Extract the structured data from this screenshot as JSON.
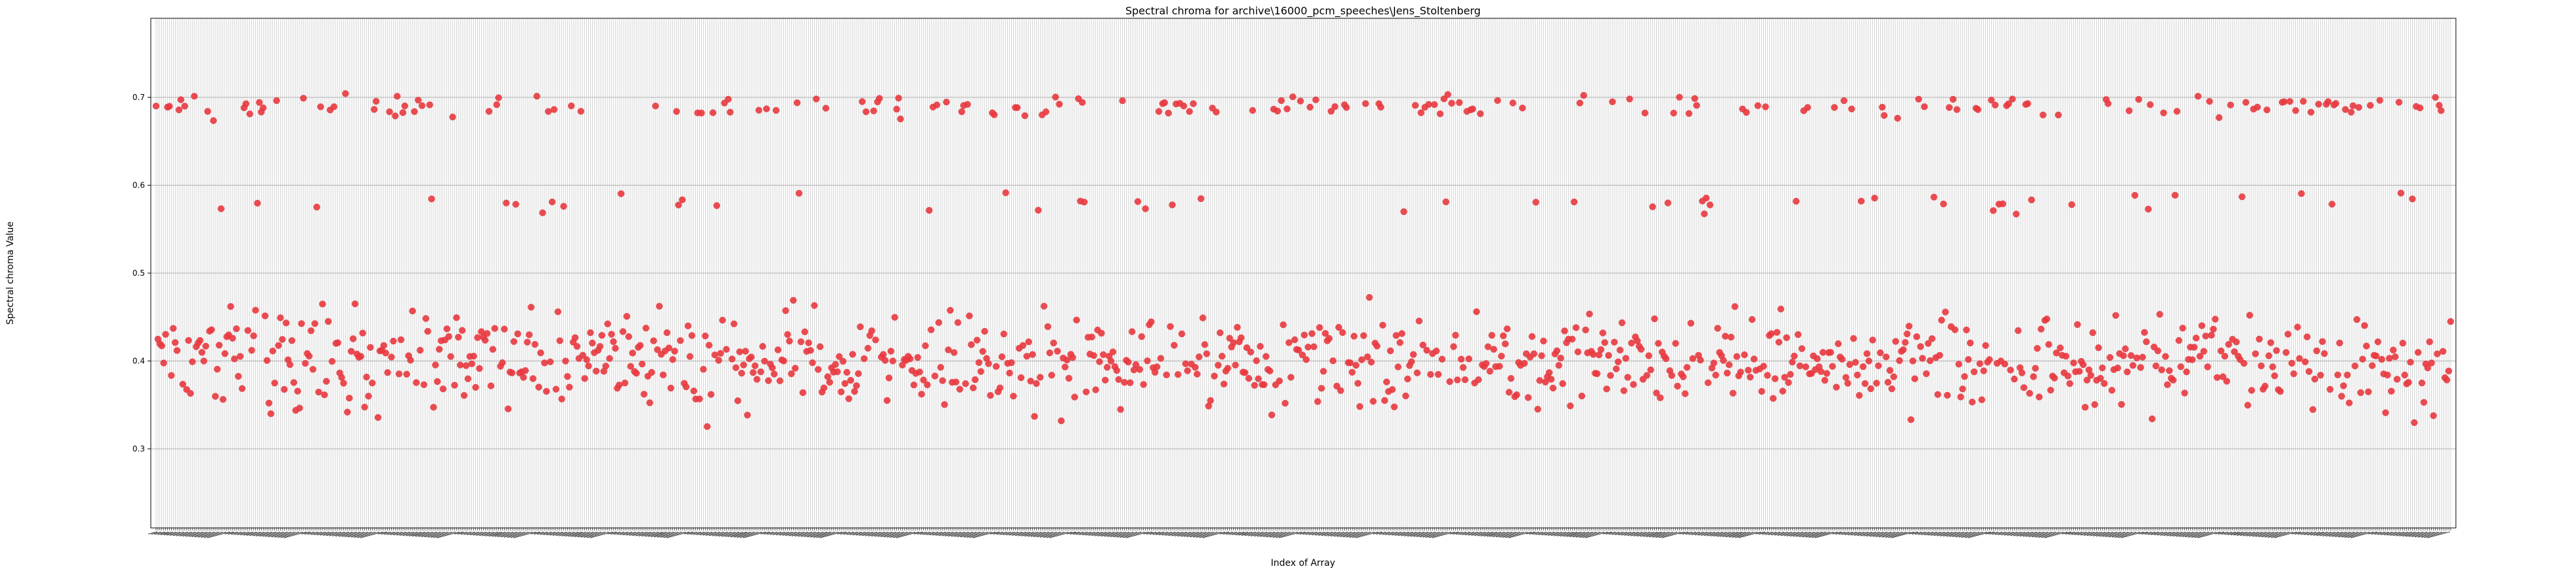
{
  "chart_data": {
    "type": "scatter",
    "title": "Spectral chroma for archive\\16000_pcm_speeches\\Jens_Stoltenberg",
    "xlabel": "Index of Array",
    "ylabel": "Spectral chroma Value",
    "ylim": [
      0.21,
      0.79
    ],
    "yticks": [
      0.3,
      0.4,
      0.5,
      0.6,
      0.7
    ],
    "ytick_labels": [
      "0.3",
      "0.4",
      "0.5",
      "0.6",
      "0.7"
    ],
    "grid": true,
    "legend": "none",
    "marker_color": "#e8393f",
    "x_count": 1200,
    "series_seed": 7
  }
}
